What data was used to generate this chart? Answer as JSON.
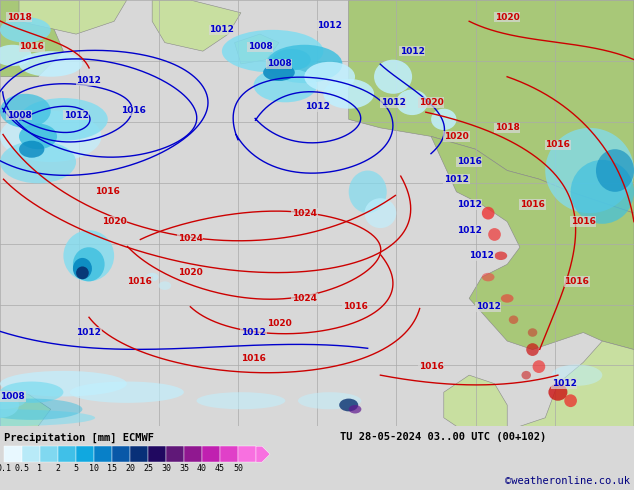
{
  "title_left": "Precipitation [mm] ECMWF",
  "title_right": "TU 28-05-2024 03..00 UTC (00+102)",
  "credit": "©weatheronline.co.uk",
  "colorbar_labels": [
    "0.1",
    "0.5",
    "1",
    "2",
    "5",
    "10",
    "15",
    "20",
    "25",
    "30",
    "35",
    "40",
    "45",
    "50"
  ],
  "colorbar_colors": [
    "#e8f8ff",
    "#b8eaf8",
    "#80d8f0",
    "#40c0e8",
    "#10a8e0",
    "#0880c8",
    "#0858a8",
    "#083078",
    "#200860",
    "#601878",
    "#901890",
    "#c020b0",
    "#e040c8",
    "#f870e0"
  ],
  "bg_sea_color": "#d8d8d8",
  "bg_land_color": "#c8dfa0",
  "bg_land_dark": "#a8c878",
  "grid_color": "#aaaaaa",
  "blue_line": "#0000cc",
  "red_line": "#cc0000",
  "precip_very_light": "#c0f0ff",
  "precip_light": "#80dcf0",
  "precip_medium": "#40c0e0",
  "precip_dark": "#0888c0",
  "precip_darkblue": "#083070",
  "precip_purple": "#601890",
  "precip_magenta": "#e040c0",
  "fig_width": 6.34,
  "fig_height": 4.9
}
